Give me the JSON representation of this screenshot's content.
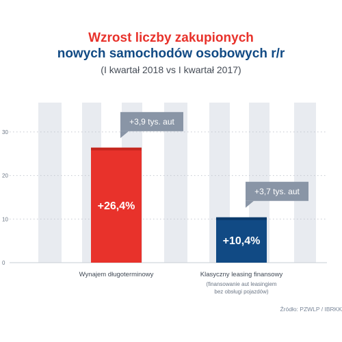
{
  "title": {
    "line1": "Wzrost liczby zakupionych",
    "line2": "nowych samochodów osobowych r/r",
    "subtitle": "(I kwartał 2018 vs I kwartał 2017)"
  },
  "source": "Źródło: PZWLP / IBRKK",
  "colors": {
    "title_red": "#e8322b",
    "title_blue": "#114a84",
    "bar_red": "#e8322b",
    "bar_red_dark": "#c4271f",
    "bar_blue": "#114a84",
    "bar_blue_dark": "#0b3a6b",
    "callout": "#8995a6",
    "stripe": "#e8ebf0"
  },
  "chart_data": {
    "type": "bar",
    "categories": [
      "Wynajem długoterminowy",
      "Klasyczny leasing finansowy"
    ],
    "category_notes": [
      "",
      "(finansowanie aut leasingiem bez obsługi pojazdów)"
    ],
    "values": [
      26.4,
      10.4
    ],
    "value_labels": [
      "+26,4%",
      "+10,4%"
    ],
    "callouts": [
      "+3,9 tys. aut",
      "+3,7 tys. aut"
    ],
    "yticks": [
      0,
      10,
      20,
      30
    ],
    "ylim": [
      0,
      32
    ],
    "grid": true,
    "title": "Wzrost liczby zakupionych nowych samochodów osobowych r/r",
    "subtitle": "(I kwartał 2018 vs I kwartał 2017)"
  }
}
